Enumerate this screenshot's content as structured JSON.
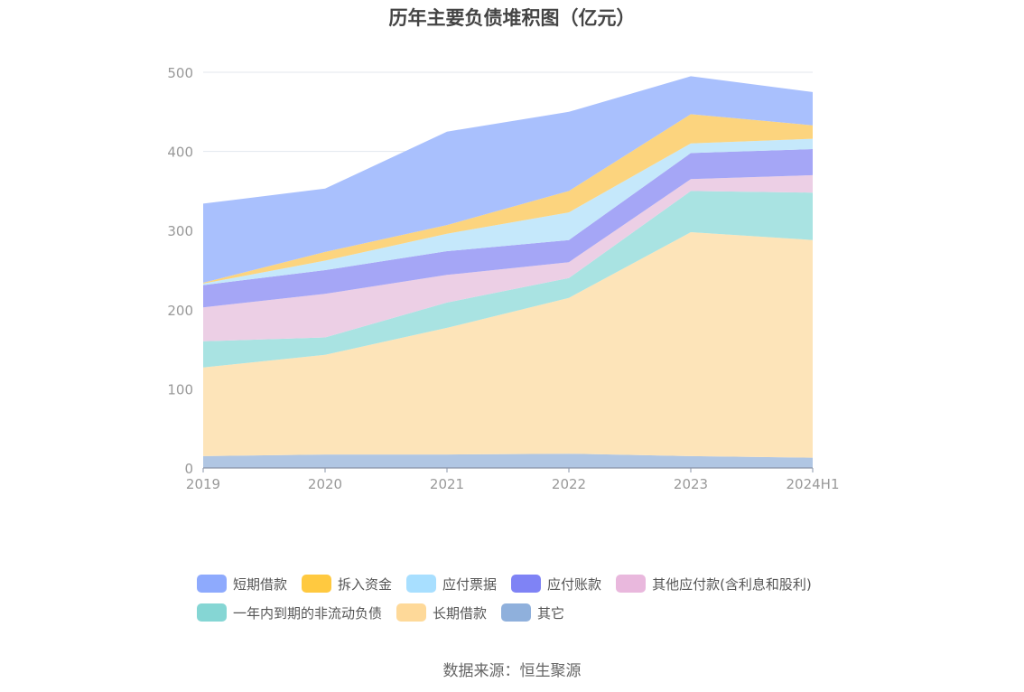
{
  "chart_data": {
    "type": "area",
    "stacked": true,
    "title": "历年主要负债堆积图（亿元）",
    "categories": [
      "2019",
      "2020",
      "2021",
      "2022",
      "2023",
      "2024H1"
    ],
    "y_ticks": [
      "0",
      "100",
      "200",
      "300",
      "400",
      "500"
    ],
    "ylim": [
      0,
      500
    ],
    "grid": true,
    "legend_position": "bottom",
    "series": [
      {
        "name": "其它",
        "values": [
          15,
          17,
          17,
          18,
          15,
          13
        ],
        "color": "#8fb0dc",
        "fill": "#b0c6e3"
      },
      {
        "name": "长期借款",
        "values": [
          112,
          126,
          160,
          197,
          283,
          275
        ],
        "color": "#fed999",
        "fill": "#fde4b9"
      },
      {
        "name": "一年内到期的非流动负债",
        "values": [
          33,
          22,
          32,
          25,
          52,
          60
        ],
        "color": "#85d6d4",
        "fill": "#a9e3e2"
      },
      {
        "name": "其他应付款(含利息和股利)",
        "values": [
          43,
          55,
          35,
          20,
          15,
          22
        ],
        "color": "#e9b8dd",
        "fill": "#eccfe5"
      },
      {
        "name": "应付账款",
        "values": [
          28,
          30,
          30,
          28,
          33,
          33
        ],
        "color": "#7f83f5",
        "fill": "#a5a6f6"
      },
      {
        "name": "应付票据",
        "values": [
          2,
          12,
          22,
          35,
          12,
          13
        ],
        "color": "#a8dfff",
        "fill": "#c5e8fb"
      },
      {
        "name": "拆入资金",
        "values": [
          1,
          11,
          11,
          27,
          37,
          17
        ],
        "color": "#ffc940",
        "fill": "#fcd47e"
      },
      {
        "name": "短期借款",
        "values": [
          100,
          80,
          118,
          100,
          48,
          42
        ],
        "color": "#8eaafd",
        "fill": "#a9c0fd"
      }
    ]
  },
  "legend": {
    "rows": [
      [
        {
          "name": "短期借款",
          "color": "#8eaafd"
        },
        {
          "name": "拆入资金",
          "color": "#ffc940"
        },
        {
          "name": "应付票据",
          "color": "#a8dfff"
        },
        {
          "name": "应付账款",
          "color": "#7f83f5"
        },
        {
          "name": "其他应付款(含利息和股利)",
          "color": "#e9b8dd"
        }
      ],
      [
        {
          "name": "一年内到期的非流动负债",
          "color": "#85d6d4"
        },
        {
          "name": "长期借款",
          "color": "#fed999"
        },
        {
          "name": "其它",
          "color": "#8fb0dc"
        }
      ]
    ]
  },
  "source": "数据来源：恒生聚源"
}
